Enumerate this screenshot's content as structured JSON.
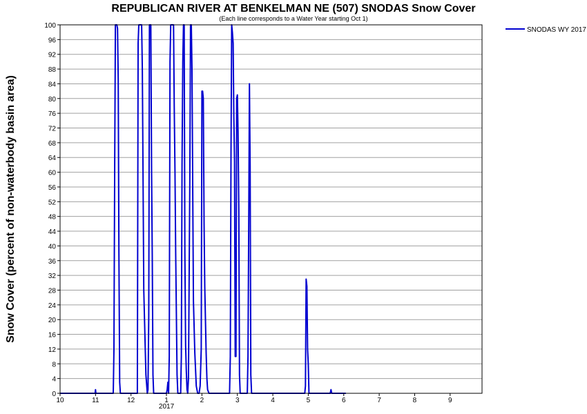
{
  "chart_data": {
    "type": "line",
    "title": "REPUBLICAN RIVER AT BENKELMAN NE (507) SNODAS Snow Cover",
    "subtitle": "(Each line corresponds to a Water Year starting Oct 1)",
    "xlabel": "",
    "ylabel": "Snow Cover (percent of non-waterbody basin area)",
    "ylim": [
      0,
      100
    ],
    "y_ticks": [
      0,
      4,
      8,
      12,
      16,
      20,
      24,
      28,
      32,
      36,
      40,
      44,
      48,
      52,
      56,
      60,
      64,
      68,
      72,
      76,
      80,
      84,
      88,
      92,
      96,
      100
    ],
    "x_unit": "month index (10 = Oct 1 2016)",
    "xlim": [
      10,
      21.9
    ],
    "x_tick_labels": [
      {
        "x": 10,
        "label": "10"
      },
      {
        "x": 11,
        "label": "11"
      },
      {
        "x": 12,
        "label": "12"
      },
      {
        "x": 13,
        "label": "1"
      },
      {
        "x": 14,
        "label": "2"
      },
      {
        "x": 15,
        "label": "3"
      },
      {
        "x": 16,
        "label": "4"
      },
      {
        "x": 17,
        "label": "5"
      },
      {
        "x": 18,
        "label": "6"
      },
      {
        "x": 19,
        "label": "7"
      },
      {
        "x": 20,
        "label": "8"
      },
      {
        "x": 21,
        "label": "9"
      }
    ],
    "year_label": {
      "x": 13,
      "label": "2017"
    },
    "grid": true,
    "legend_position": "top-right-outside",
    "series": [
      {
        "name": "SNODAS WY 2017",
        "color": "#0000d0",
        "x": [
          10,
          10.99,
          11.0,
          11.01,
          11.5,
          11.52,
          11.54,
          11.56,
          11.6,
          11.62,
          11.64,
          11.66,
          11.68,
          11.7,
          11.75,
          11.8,
          12.18,
          12.2,
          12.22,
          12.26,
          12.3,
          12.32,
          12.34,
          12.36,
          12.4,
          12.42,
          12.46,
          12.48,
          12.5,
          12.52,
          12.54,
          12.56,
          12.58,
          12.6,
          12.62,
          12.64,
          12.66,
          12.7,
          13.0,
          13.02,
          13.04,
          13.06,
          13.08,
          13.1,
          13.12,
          13.16,
          13.2,
          13.22,
          13.24,
          13.26,
          13.3,
          13.32,
          13.4,
          13.42,
          13.44,
          13.46,
          13.48,
          13.5,
          13.52,
          13.54,
          13.56,
          13.58,
          13.6,
          13.62,
          13.66,
          13.68,
          13.7,
          13.72,
          13.76,
          13.8,
          13.84,
          13.88,
          13.9,
          13.92,
          13.95,
          13.98,
          14.0,
          14.02,
          14.04,
          14.06,
          14.08,
          14.1,
          14.12,
          14.14,
          14.16,
          14.2,
          14.3,
          14.5,
          14.78,
          14.8,
          14.82,
          14.84,
          14.86,
          14.88,
          14.9,
          14.92,
          14.94,
          14.96,
          14.98,
          15.0,
          15.02,
          15.04,
          15.06,
          15.08,
          15.1,
          15.2,
          15.28,
          15.3,
          15.32,
          15.34,
          15.36,
          15.38,
          15.4,
          15.5,
          16.0,
          16.5,
          16.9,
          16.92,
          16.94,
          16.96,
          16.98,
          17.0,
          17.02,
          17.04,
          17.1,
          17.5,
          17.6,
          17.62,
          17.64,
          17.66,
          18.0,
          18.06
        ],
        "y": [
          0,
          0,
          1,
          0,
          0,
          12,
          62,
          100,
          100,
          99,
          85,
          38,
          3,
          0,
          0,
          0,
          0,
          95,
          100,
          100,
          100,
          88,
          60,
          28,
          13,
          5,
          0,
          1,
          21,
          100,
          100,
          100,
          60,
          37,
          5,
          0,
          0,
          0,
          0,
          1,
          3,
          0,
          10,
          90,
          100,
          100,
          100,
          78,
          60,
          38,
          5,
          0,
          0,
          10,
          62,
          90,
          100,
          100,
          38,
          13,
          6,
          1,
          0,
          4,
          59,
          100,
          100,
          88,
          25,
          11,
          2,
          0,
          0,
          0,
          2,
          12,
          82,
          82,
          80,
          46,
          29,
          20,
          11,
          4,
          1,
          0,
          0,
          0,
          0,
          10,
          65,
          100,
          98,
          95,
          75,
          63,
          10,
          10,
          80,
          81,
          71,
          50,
          5,
          0,
          0,
          0,
          0,
          10,
          47,
          84,
          62,
          5,
          0,
          0,
          0,
          0,
          0,
          2,
          31,
          29,
          12,
          8,
          0,
          0,
          0,
          0,
          0,
          0,
          1,
          0,
          0,
          0
        ]
      }
    ]
  }
}
